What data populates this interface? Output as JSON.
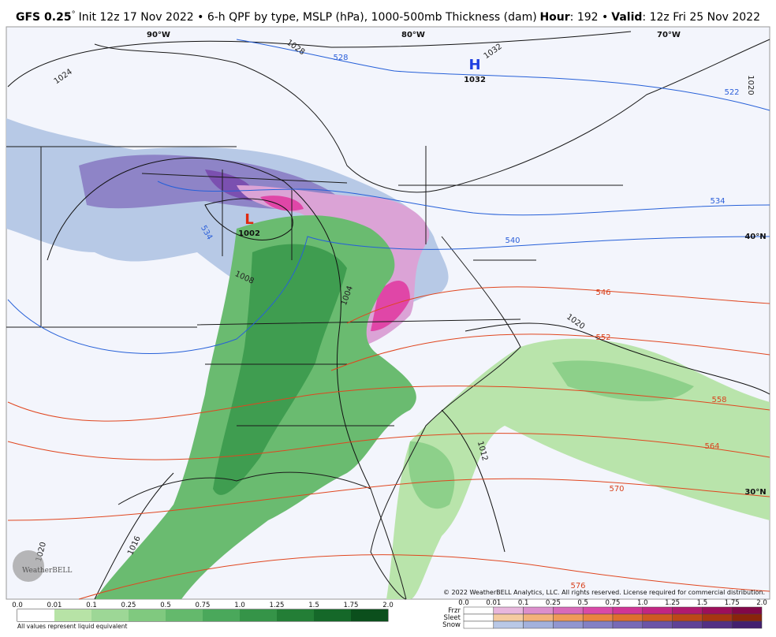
{
  "header": {
    "model": "GFS 0.25",
    "degree": "°",
    "description": "Init 12z 17 Nov 2022 • 6-h QPF by type, MSLP (hPa), 1000-500mb Thickness (dam)",
    "hour_label": "Hour",
    "hour_value": ": 192 •",
    "valid_label": "Valid",
    "valid_value": ": 12z Fri 25 Nov 2022"
  },
  "map": {
    "longitude_labels": [
      "90°W",
      "80°W",
      "70°W"
    ],
    "latitude_labels": [
      "40°N",
      "30°N"
    ],
    "isobar_labels": [
      "1024",
      "1028",
      "1032",
      "1020",
      "1008",
      "1004",
      "1020",
      "1012",
      "1016",
      "1020"
    ],
    "thickness_labels": [
      "528",
      "522",
      "534",
      "534",
      "540",
      "546",
      "552",
      "558",
      "564",
      "570",
      "576"
    ],
    "high": {
      "symbol": "H",
      "pressure": "1032"
    },
    "low": {
      "symbol": "L",
      "pressure": "1002"
    },
    "logo": "WeatherBELL",
    "copyright": "© 2022 WeatherBELL Analytics, LLC. All rights reserved. License required for commercial distribution."
  },
  "legend": {
    "rain_ticks": [
      "0.0",
      "0.01",
      "0.1",
      "0.25",
      "0.5",
      "0.75",
      "1.0",
      "1.25",
      "1.5",
      "1.75",
      "2.0"
    ],
    "note": "All values represent liquid equivalent",
    "mixed_ticks": [
      "0.0",
      "0.01",
      "0.1",
      "0.25",
      "0.5",
      "0.75",
      "1.0",
      "1.25",
      "1.5",
      "1.75",
      "2.0"
    ],
    "mixed_types": [
      "Frzr",
      "Sleet",
      "Snow"
    ]
  }
}
